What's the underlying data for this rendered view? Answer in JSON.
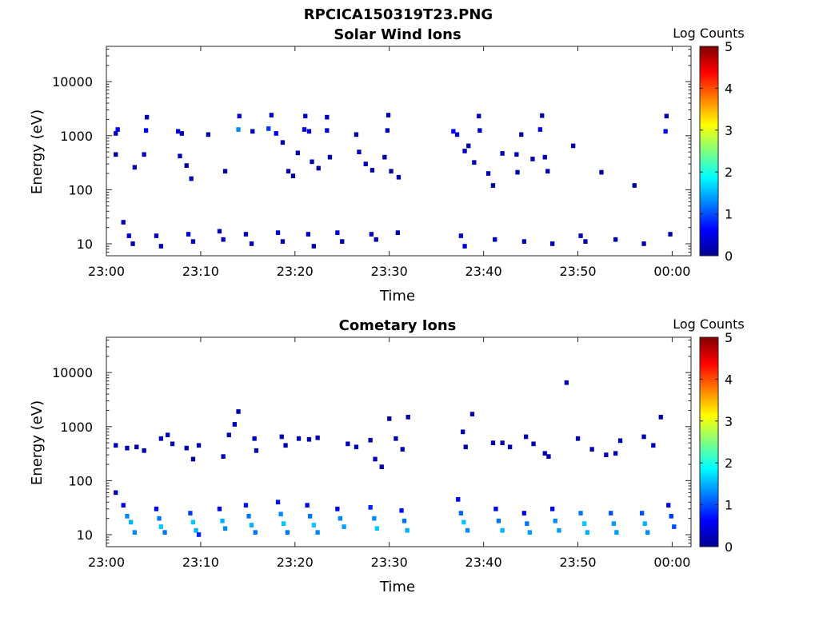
{
  "figure_title": "RPCICA150319T23.PNG",
  "colorbar": {
    "label": "Log Counts",
    "ticks": [
      "0",
      "1",
      "2",
      "3",
      "4",
      "5"
    ],
    "colormap": [
      "#00008f",
      "#0000ff",
      "#0080ff",
      "#00ffff",
      "#80ff80",
      "#ffff00",
      "#ff8000",
      "#ff0000",
      "#800000"
    ]
  },
  "chart_data": [
    {
      "type": "heatmap",
      "title": "Solar Wind Ions",
      "xlabel": "Time",
      "ylabel": "Energy (eV)",
      "x_ticks": [
        "23:00",
        "23:10",
        "23:20",
        "23:30",
        "23:40",
        "23:50",
        "00:00"
      ],
      "y_ticks": [
        "10",
        "100",
        "1000",
        "10000"
      ],
      "y_scale": "log",
      "xlim_minutes": [
        0,
        62
      ],
      "ylim_eV": [
        6,
        45000
      ],
      "clim": [
        0,
        5
      ],
      "cells": [
        [
          1.0,
          1100,
          0.3
        ],
        [
          1.2,
          1300,
          0.5
        ],
        [
          1.0,
          450,
          0.2
        ],
        [
          4.2,
          1250,
          0.6
        ],
        [
          4.3,
          2200,
          0.2
        ],
        [
          4.0,
          450,
          0.3
        ],
        [
          3.0,
          260,
          0.1
        ],
        [
          7.6,
          1200,
          0.4
        ],
        [
          8.0,
          1100,
          0.3
        ],
        [
          7.8,
          420,
          0.2
        ],
        [
          8.5,
          280,
          0.1
        ],
        [
          9.0,
          160,
          0.2
        ],
        [
          10.8,
          1050,
          0.2
        ],
        [
          12.6,
          220,
          0.1
        ],
        [
          14.0,
          1300,
          1.3
        ],
        [
          14.1,
          2300,
          0.3
        ],
        [
          15.5,
          1200,
          0.2
        ],
        [
          17.2,
          1350,
          0.9
        ],
        [
          17.5,
          2400,
          0.3
        ],
        [
          18.0,
          1100,
          0.6
        ],
        [
          18.7,
          750,
          0.2
        ],
        [
          19.3,
          220,
          0.1
        ],
        [
          19.8,
          180,
          0.1
        ],
        [
          20.3,
          480,
          0.2
        ],
        [
          21.0,
          1300,
          0.5
        ],
        [
          21.1,
          2300,
          0.3
        ],
        [
          21.5,
          1200,
          0.4
        ],
        [
          21.8,
          330,
          0.2
        ],
        [
          22.5,
          250,
          0.1
        ],
        [
          23.4,
          1250,
          0.4
        ],
        [
          23.4,
          2200,
          0.2
        ],
        [
          23.7,
          400,
          0.2
        ],
        [
          26.5,
          1050,
          0.1
        ],
        [
          26.8,
          500,
          0.3
        ],
        [
          27.5,
          300,
          0.2
        ],
        [
          28.2,
          230,
          0.2
        ],
        [
          29.8,
          1250,
          0.3
        ],
        [
          29.9,
          2400,
          0.2
        ],
        [
          29.5,
          400,
          0.1
        ],
        [
          30.2,
          220,
          0.1
        ],
        [
          31.0,
          170,
          0.2
        ],
        [
          36.8,
          1200,
          0.6
        ],
        [
          37.2,
          1050,
          0.3
        ],
        [
          38.0,
          520,
          0.2
        ],
        [
          38.4,
          650,
          0.1
        ],
        [
          39.0,
          320,
          0.2
        ],
        [
          39.5,
          2300,
          0.3
        ],
        [
          39.6,
          1250,
          0.4
        ],
        [
          40.5,
          200,
          0.2
        ],
        [
          41.0,
          120,
          0.1
        ],
        [
          42.0,
          470,
          0.2
        ],
        [
          43.5,
          450,
          0.3
        ],
        [
          43.6,
          210,
          0.2
        ],
        [
          44.0,
          1050,
          0.1
        ],
        [
          45.2,
          370,
          0.2
        ],
        [
          46.0,
          1300,
          0.5
        ],
        [
          46.2,
          2350,
          0.2
        ],
        [
          46.5,
          400,
          0.2
        ],
        [
          46.8,
          220,
          0.2
        ],
        [
          49.5,
          650,
          0.1
        ],
        [
          52.5,
          210,
          0.1
        ],
        [
          56.0,
          120,
          0.1
        ],
        [
          59.3,
          1200,
          0.6
        ],
        [
          59.4,
          2300,
          0.2
        ],
        [
          1.8,
          25,
          0.3
        ],
        [
          2.4,
          14,
          0.4
        ],
        [
          2.8,
          10,
          0.2
        ],
        [
          5.3,
          14,
          0.3
        ],
        [
          5.8,
          9,
          0.2
        ],
        [
          8.7,
          15,
          0.4
        ],
        [
          9.2,
          11,
          0.3
        ],
        [
          12.0,
          17,
          0.2
        ],
        [
          12.4,
          12,
          0.2
        ],
        [
          14.8,
          15,
          0.3
        ],
        [
          15.4,
          10,
          0.2
        ],
        [
          18.2,
          16,
          0.4
        ],
        [
          18.7,
          11,
          0.2
        ],
        [
          21.4,
          15,
          0.3
        ],
        [
          22.0,
          9,
          0.2
        ],
        [
          24.5,
          16,
          0.4
        ],
        [
          25.0,
          11,
          0.2
        ],
        [
          28.1,
          15,
          0.3
        ],
        [
          28.6,
          12,
          0.2
        ],
        [
          30.9,
          16,
          0.2
        ],
        [
          37.6,
          14,
          0.4
        ],
        [
          38.0,
          9,
          0.3
        ],
        [
          41.2,
          12,
          0.2
        ],
        [
          44.3,
          11,
          0.2
        ],
        [
          47.3,
          10,
          0.2
        ],
        [
          50.3,
          14,
          0.3
        ],
        [
          50.8,
          11,
          0.2
        ],
        [
          54.0,
          12,
          0.2
        ],
        [
          57.0,
          10,
          0.2
        ],
        [
          59.8,
          15,
          0.2
        ]
      ]
    },
    {
      "type": "heatmap",
      "title": "Cometary Ions",
      "xlabel": "Time",
      "ylabel": "Energy (eV)",
      "x_ticks": [
        "23:00",
        "23:10",
        "23:20",
        "23:30",
        "23:40",
        "23:50",
        "00:00"
      ],
      "y_ticks": [
        "10",
        "100",
        "1000",
        "10000"
      ],
      "y_scale": "log",
      "xlim_minutes": [
        0,
        62
      ],
      "ylim_eV": [
        6,
        45000
      ],
      "clim": [
        0,
        5
      ],
      "cells": [
        [
          1.0,
          450,
          0.2
        ],
        [
          2.2,
          400,
          0.2
        ],
        [
          3.2,
          420,
          0.1
        ],
        [
          4.0,
          360,
          0.2
        ],
        [
          5.8,
          600,
          0.2
        ],
        [
          6.5,
          700,
          0.3
        ],
        [
          7.0,
          480,
          0.2
        ],
        [
          8.5,
          400,
          0.2
        ],
        [
          9.2,
          250,
          0.1
        ],
        [
          9.8,
          450,
          0.2
        ],
        [
          12.4,
          280,
          0.2
        ],
        [
          13.0,
          700,
          0.2
        ],
        [
          13.6,
          1100,
          0.2
        ],
        [
          14.0,
          1900,
          0.2
        ],
        [
          15.7,
          600,
          0.3
        ],
        [
          15.9,
          360,
          0.2
        ],
        [
          18.6,
          650,
          0.2
        ],
        [
          19.0,
          450,
          0.2
        ],
        [
          20.4,
          600,
          0.2
        ],
        [
          21.5,
          580,
          0.2
        ],
        [
          22.4,
          620,
          0.2
        ],
        [
          25.6,
          480,
          0.2
        ],
        [
          26.5,
          420,
          0.2
        ],
        [
          28.0,
          560,
          0.2
        ],
        [
          28.5,
          250,
          0.2
        ],
        [
          29.2,
          180,
          0.2
        ],
        [
          30.0,
          1400,
          0.1
        ],
        [
          30.7,
          600,
          0.2
        ],
        [
          31.4,
          380,
          0.2
        ],
        [
          32.0,
          1500,
          0.2
        ],
        [
          37.8,
          800,
          0.2
        ],
        [
          38.1,
          420,
          0.2
        ],
        [
          38.8,
          1700,
          0.2
        ],
        [
          41.0,
          500,
          0.2
        ],
        [
          42.0,
          500,
          0.2
        ],
        [
          42.8,
          420,
          0.2
        ],
        [
          44.5,
          650,
          0.2
        ],
        [
          45.3,
          480,
          0.2
        ],
        [
          46.5,
          320,
          0.2
        ],
        [
          46.9,
          280,
          0.2
        ],
        [
          48.8,
          6500,
          0.2
        ],
        [
          50.0,
          600,
          0.2
        ],
        [
          51.5,
          380,
          0.2
        ],
        [
          53.0,
          300,
          0.2
        ],
        [
          54.0,
          320,
          0.2
        ],
        [
          54.5,
          550,
          0.2
        ],
        [
          57.0,
          650,
          0.2
        ],
        [
          58.0,
          450,
          0.2
        ],
        [
          58.8,
          1500,
          0.2
        ],
        [
          1.0,
          60,
          0.2
        ],
        [
          1.8,
          35,
          0.6
        ],
        [
          2.2,
          22,
          1.3
        ],
        [
          2.6,
          17,
          1.5
        ],
        [
          3.0,
          11,
          1.3
        ],
        [
          5.3,
          30,
          0.6
        ],
        [
          5.6,
          20,
          1.2
        ],
        [
          5.8,
          14,
          1.6
        ],
        [
          6.2,
          11,
          1.2
        ],
        [
          8.9,
          25,
          0.9
        ],
        [
          9.2,
          17,
          1.6
        ],
        [
          9.5,
          12,
          1.5
        ],
        [
          9.8,
          10,
          0.8
        ],
        [
          12.0,
          30,
          0.5
        ],
        [
          12.3,
          18,
          1.5
        ],
        [
          12.6,
          13,
          1.3
        ],
        [
          14.8,
          35,
          0.7
        ],
        [
          15.1,
          22,
          1.2
        ],
        [
          15.4,
          15,
          1.5
        ],
        [
          15.8,
          11,
          1.2
        ],
        [
          18.2,
          40,
          0.7
        ],
        [
          18.5,
          24,
          1.3
        ],
        [
          18.8,
          16,
          1.6
        ],
        [
          19.2,
          11,
          1.2
        ],
        [
          21.3,
          35,
          0.6
        ],
        [
          21.6,
          22,
          1.2
        ],
        [
          22.0,
          15,
          1.6
        ],
        [
          22.4,
          11,
          1.3
        ],
        [
          24.5,
          30,
          0.5
        ],
        [
          24.8,
          20,
          1.3
        ],
        [
          25.2,
          14,
          1.4
        ],
        [
          28.0,
          32,
          0.8
        ],
        [
          28.4,
          20,
          1.3
        ],
        [
          28.7,
          13,
          1.6
        ],
        [
          31.3,
          28,
          0.7
        ],
        [
          31.6,
          18,
          1.2
        ],
        [
          31.9,
          12,
          1.5
        ],
        [
          37.3,
          45,
          0.5
        ],
        [
          37.6,
          25,
          1.1
        ],
        [
          37.9,
          17,
          1.6
        ],
        [
          38.3,
          12,
          1.3
        ],
        [
          41.3,
          30,
          0.6
        ],
        [
          41.6,
          18,
          1.2
        ],
        [
          42.0,
          12,
          1.5
        ],
        [
          44.3,
          25,
          0.6
        ],
        [
          44.6,
          16,
          1.2
        ],
        [
          44.9,
          11,
          1.4
        ],
        [
          47.3,
          30,
          0.6
        ],
        [
          47.6,
          18,
          1.3
        ],
        [
          48.0,
          12,
          1.4
        ],
        [
          50.3,
          25,
          1.2
        ],
        [
          50.7,
          16,
          1.6
        ],
        [
          51.0,
          11,
          1.5
        ],
        [
          53.5,
          25,
          1.0
        ],
        [
          53.8,
          16,
          1.4
        ],
        [
          54.1,
          11,
          1.4
        ],
        [
          56.8,
          25,
          1.0
        ],
        [
          57.1,
          16,
          1.5
        ],
        [
          57.4,
          11,
          1.3
        ],
        [
          59.6,
          35,
          0.5
        ],
        [
          59.9,
          22,
          0.9
        ],
        [
          60.2,
          14,
          1.0
        ]
      ]
    }
  ]
}
